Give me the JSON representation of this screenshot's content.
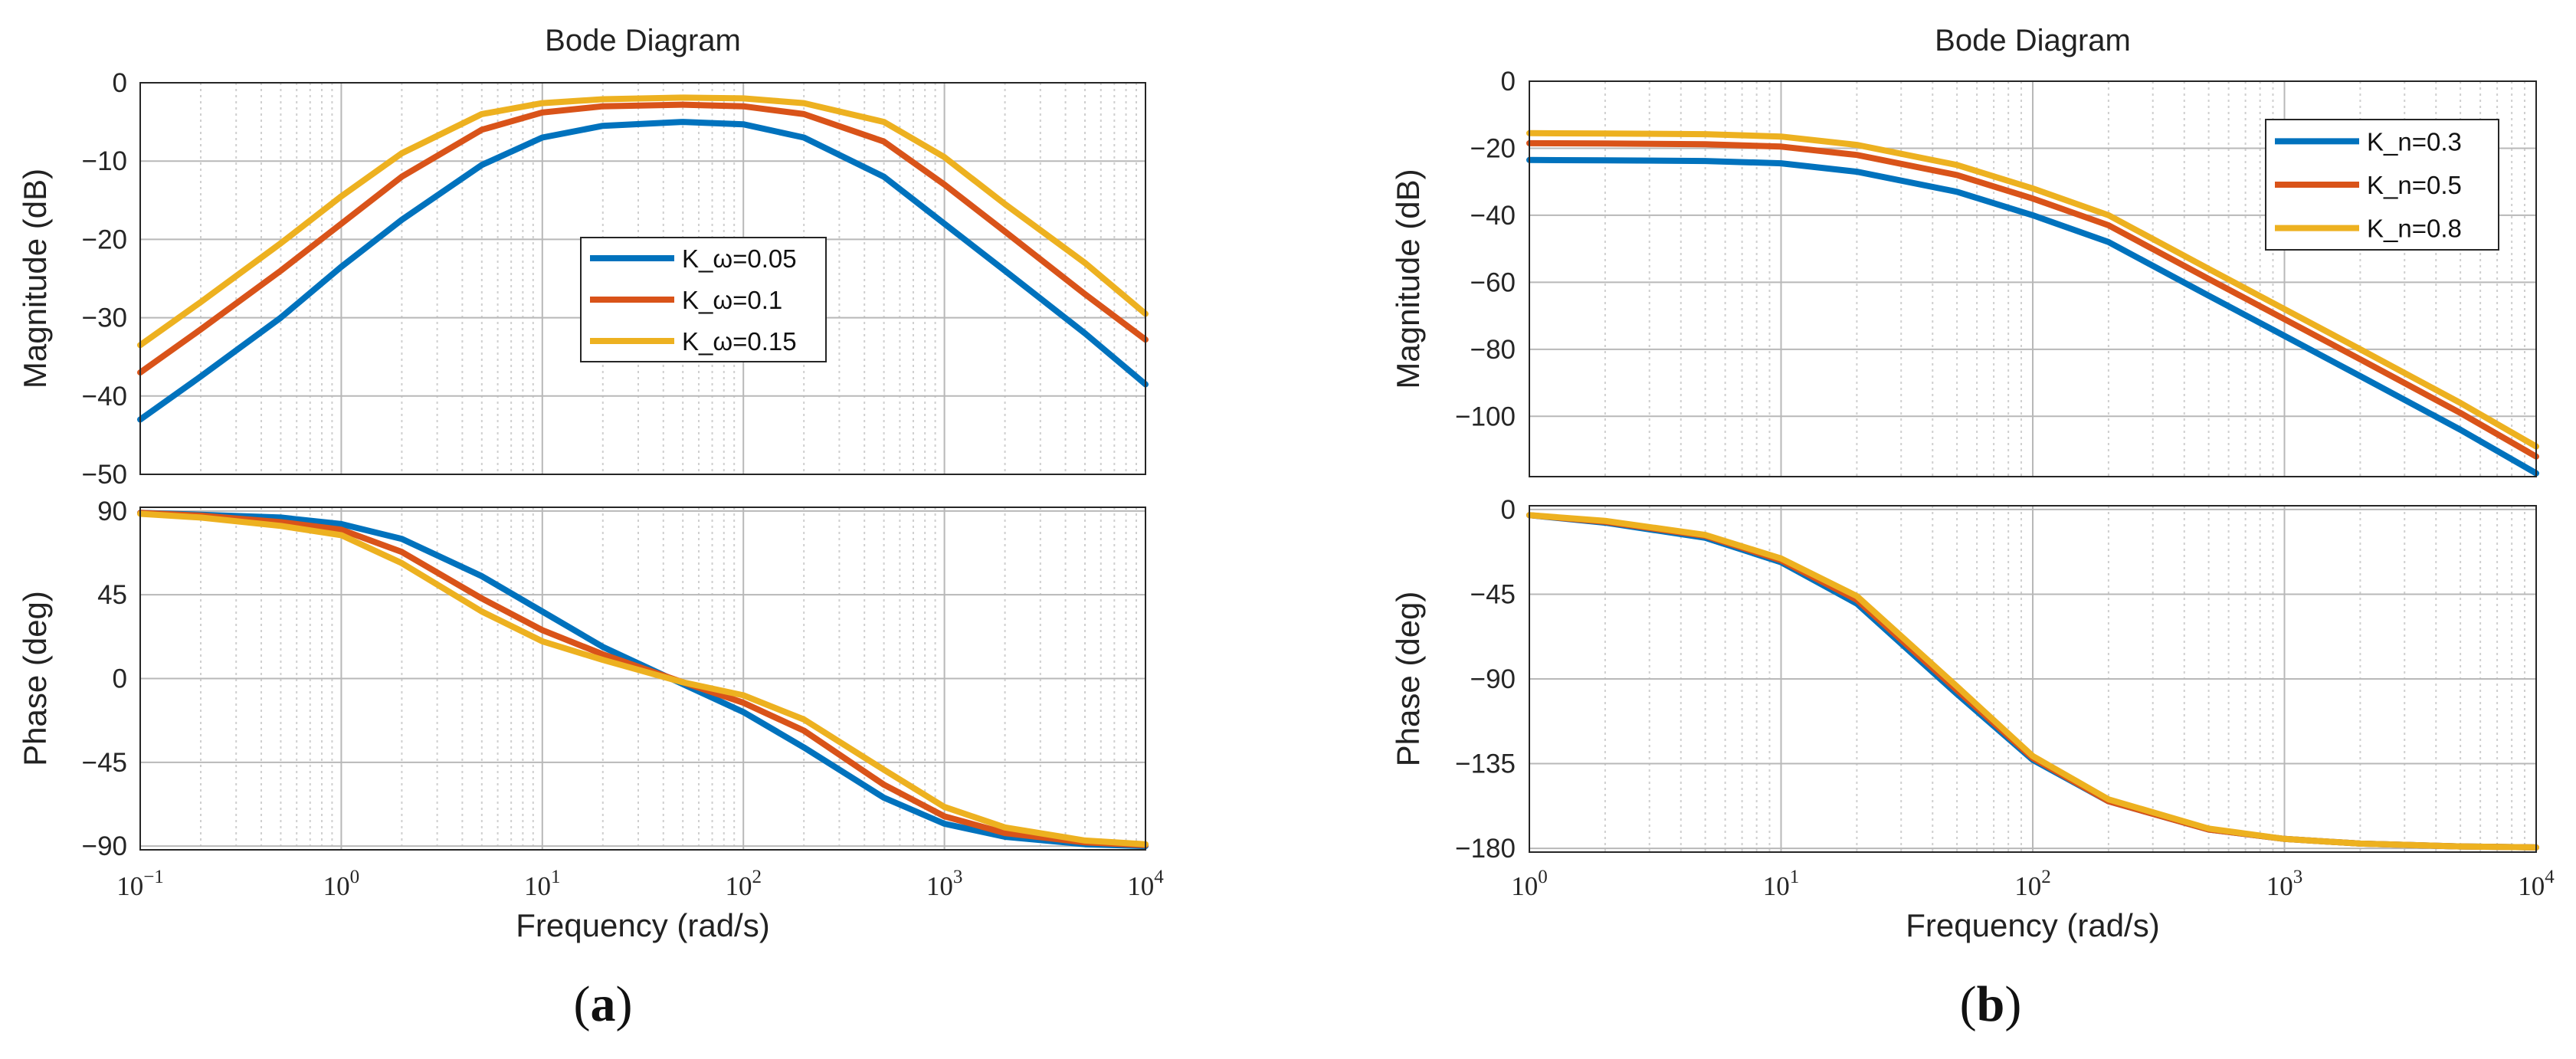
{
  "colors": {
    "blue": "#0072BD",
    "orange": "#D95319",
    "yellow": "#EDB120"
  },
  "chart_data": [
    {
      "type": "line",
      "panel_label": "a",
      "title": "Bode Diagram",
      "xlabel": "Frequency  (rad/s)",
      "xscale": "log",
      "xlim": [
        0.1,
        10000
      ],
      "x_tick_labels": [
        {
          "base": "10",
          "exp": "−1"
        },
        {
          "base": "10",
          "exp": "0"
        },
        {
          "base": "10",
          "exp": "1"
        },
        {
          "base": "10",
          "exp": "2"
        },
        {
          "base": "10",
          "exp": "3"
        },
        {
          "base": "10",
          "exp": "4"
        }
      ],
      "grid": true,
      "legend_position": "center",
      "x": [
        0.1,
        0.2,
        0.5,
        1,
        2,
        5,
        10,
        20,
        50,
        100,
        200,
        500,
        1000,
        2000,
        5000,
        10000
      ],
      "magnitude": {
        "ylabel": "Magnitude (dB)",
        "ylim": [
          -50,
          0
        ],
        "yticks": [
          0,
          -10,
          -20,
          -30,
          -40,
          -50
        ],
        "series": [
          {
            "name": "K_ω=0.05",
            "color": "#0072BD",
            "values": [
              -43,
              -37.5,
              -30,
              -23.5,
              -17.5,
              -10.5,
              -7,
              -5.5,
              -5,
              -5.3,
              -7,
              -12,
              -18,
              -24,
              -32,
              -38.5
            ]
          },
          {
            "name": "K_ω=0.1",
            "color": "#D95319",
            "values": [
              -37,
              -31.5,
              -24,
              -18,
              -12,
              -6,
              -3.8,
              -3,
              -2.8,
              -3,
              -4,
              -7.5,
              -13,
              -19,
              -27,
              -32.8
            ]
          },
          {
            "name": "K_ω=0.15",
            "color": "#EDB120",
            "values": [
              -33.5,
              -28,
              -20.5,
              -14.5,
              -9,
              -4,
              -2.6,
              -2.1,
              -1.9,
              -2,
              -2.6,
              -5,
              -9.5,
              -15.5,
              -23,
              -29.5
            ]
          }
        ]
      },
      "phase": {
        "ylabel": "Phase (deg)",
        "ylim": [
          -92,
          92
        ],
        "yticks": [
          90,
          45,
          0,
          -45,
          -90
        ],
        "series": [
          {
            "name": "K_ω=0.05",
            "color": "#0072BD",
            "values": [
              89,
              88,
              86.5,
              83,
              75,
              55,
              36,
              17,
              -3,
              -18,
              -37,
              -64,
              -78,
              -85,
              -89,
              -90
            ]
          },
          {
            "name": "K_ω=0.1",
            "color": "#D95319",
            "values": [
              89,
              87.5,
              84,
              80,
              68,
              43,
              26,
              13,
              -2,
              -13,
              -28,
              -57,
              -74,
              -83,
              -88,
              -89.5
            ]
          },
          {
            "name": "K_ω=0.15",
            "color": "#EDB120",
            "values": [
              88.5,
              86.5,
              82,
              77,
              62,
              36,
              20,
              10,
              -2,
              -9,
              -22,
              -49,
              -69,
              -80,
              -87,
              -89
            ]
          }
        ]
      }
    },
    {
      "type": "line",
      "panel_label": "b",
      "title": "Bode Diagram",
      "xlabel": "Frequency  (rad/s)",
      "xscale": "log",
      "xlim": [
        1,
        10000
      ],
      "x_tick_labels": [
        {
          "base": "10",
          "exp": "0"
        },
        {
          "base": "10",
          "exp": "1"
        },
        {
          "base": "10",
          "exp": "2"
        },
        {
          "base": "10",
          "exp": "3"
        },
        {
          "base": "10",
          "exp": "4"
        }
      ],
      "grid": true,
      "legend_position": "top-right",
      "x": [
        1,
        2,
        5,
        10,
        20,
        50,
        100,
        200,
        500,
        1000,
        2000,
        5000,
        10000
      ],
      "magnitude": {
        "ylabel": "Magnitude (dB)",
        "ylim": [
          -118,
          0
        ],
        "yticks": [
          0,
          -20,
          -40,
          -60,
          -80,
          -100
        ],
        "series": [
          {
            "name": "K_n=0.3",
            "color": "#0072BD",
            "values": [
              -23.5,
              -23.6,
              -23.8,
              -24.5,
              -27,
              -33,
              -40,
              -48,
              -64,
              -76,
              -88,
              -104,
              -117
            ]
          },
          {
            "name": "K_n=0.5",
            "color": "#D95319",
            "values": [
              -18.5,
              -18.6,
              -18.8,
              -19.5,
              -22,
              -28,
              -35,
              -43,
              -59,
              -71,
              -83,
              -99,
              -112
            ]
          },
          {
            "name": "K_n=0.8",
            "color": "#EDB120",
            "values": [
              -15.5,
              -15.6,
              -15.8,
              -16.5,
              -19,
              -25,
              -32,
              -40,
              -56,
              -68,
              -80,
              -96,
              -109
            ]
          }
        ]
      },
      "phase": {
        "ylabel": "Phase (deg)",
        "ylim": [
          -182,
          2
        ],
        "yticks": [
          0,
          -45,
          -90,
          -135,
          -180
        ],
        "series": [
          {
            "name": "K_n=0.3",
            "color": "#0072BD",
            "values": [
              -3,
              -7,
              -15,
              -28,
              -50,
              -98,
              -133,
              -155,
              -170,
              -175,
              -177.5,
              -179,
              -179.5
            ]
          },
          {
            "name": "K_n=0.5",
            "color": "#D95319",
            "values": [
              -3,
              -6.5,
              -14,
              -27,
              -48,
              -96,
              -132,
              -155,
              -170,
              -175,
              -177.5,
              -179,
              -179.5
            ]
          },
          {
            "name": "K_n=0.8",
            "color": "#EDB120",
            "values": [
              -3,
              -6,
              -13.5,
              -26,
              -46,
              -94,
              -131,
              -154,
              -169.5,
              -175,
              -177.5,
              -179,
              -179.5
            ]
          }
        ]
      }
    }
  ]
}
